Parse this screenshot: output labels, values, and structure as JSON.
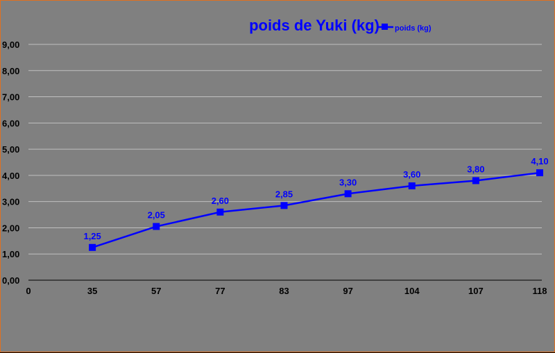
{
  "chart_data": {
    "type": "line",
    "title": "poids de Yuki (kg)",
    "xlabel": "",
    "ylabel": "",
    "categories": [
      "0",
      "35",
      "57",
      "77",
      "83",
      "97",
      "104",
      "107",
      "118"
    ],
    "series": [
      {
        "name": "poids (kg)",
        "values": [
          null,
          1.25,
          2.05,
          2.6,
          2.85,
          3.3,
          3.6,
          3.8,
          4.1
        ],
        "labels": [
          "",
          "1,25",
          "2,05",
          "2,60",
          "2,85",
          "3,30",
          "3,60",
          "3,80",
          "4,10"
        ]
      }
    ],
    "ylim": [
      0,
      9
    ],
    "yticks": [
      "0,00",
      "1,00",
      "2,00",
      "3,00",
      "4,00",
      "5,00",
      "6,00",
      "7,00",
      "8,00",
      "9,00"
    ],
    "grid": true,
    "legend": "top-right",
    "colors": {
      "series": "#0000ff",
      "background": "#808080",
      "gridline": "#c0c0c0",
      "border": "#e07020"
    }
  }
}
